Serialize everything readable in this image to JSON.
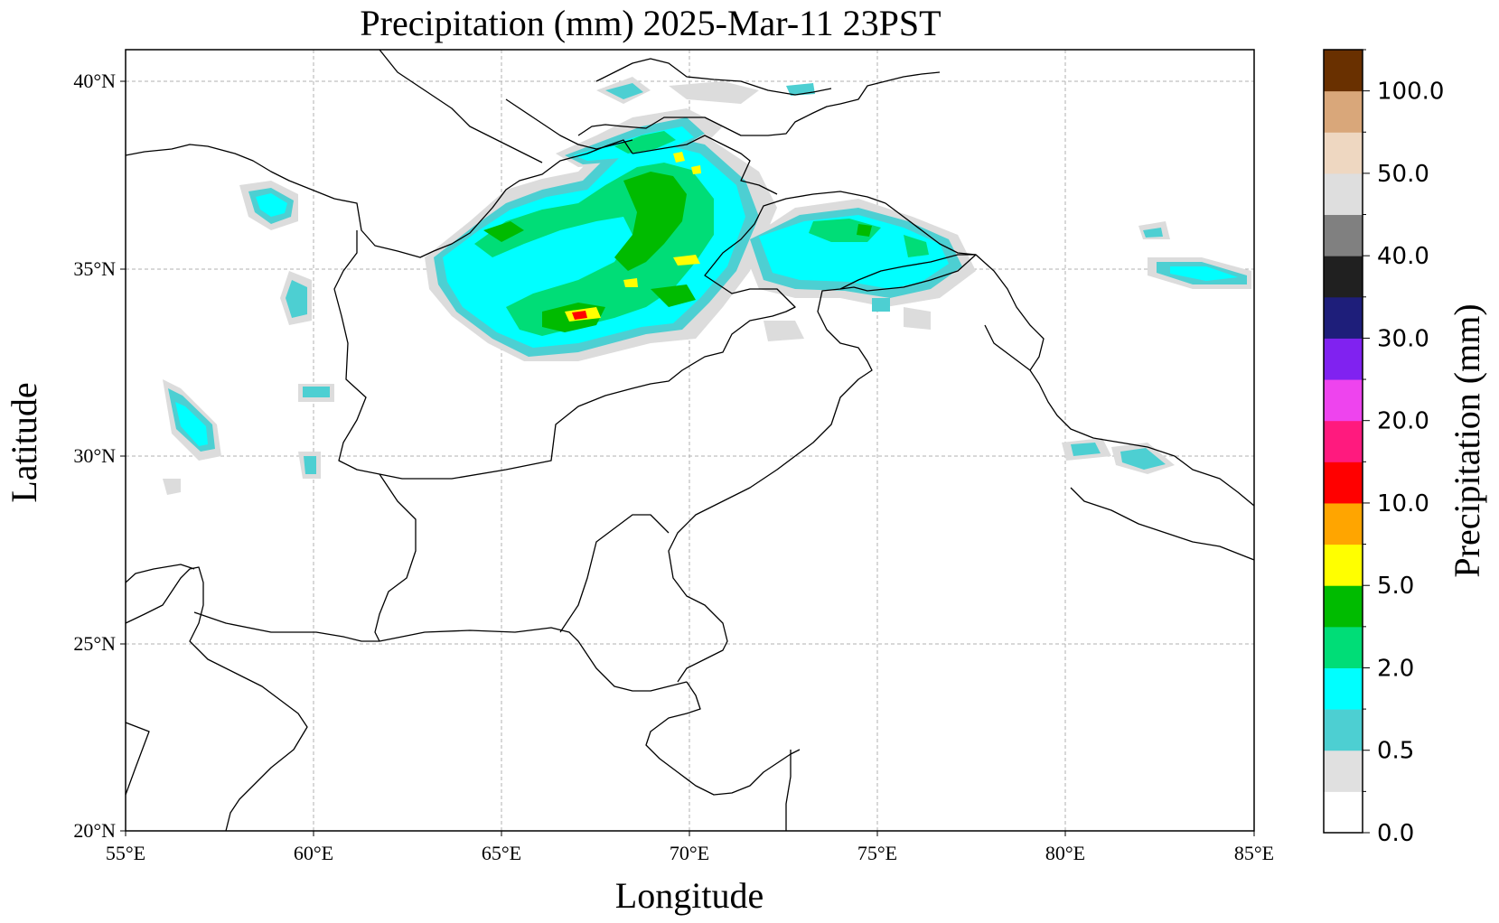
{
  "title": "Precipitation (mm)  2025-Mar-11 23PST",
  "map": {
    "xlabel": "Longitude",
    "ylabel": "Latitude",
    "lon_ticks": [
      "55°E",
      "60°E",
      "65°E",
      "70°E",
      "75°E",
      "80°E",
      "85°E"
    ],
    "lat_ticks": [
      "20°N",
      "25°N",
      "30°N",
      "35°N",
      "40°N"
    ],
    "lon_range": [
      55,
      85
    ],
    "lat_range": [
      20,
      41
    ],
    "grid": true,
    "border_color": "#000000"
  },
  "colorbar": {
    "label": "Precipitation (mm)",
    "colors": [
      "#ffffff",
      "#e0e0e0",
      "#4dcfd2",
      "#00ffff",
      "#00dd77",
      "#00bb00",
      "#ffff00",
      "#ffa500",
      "#ff0000",
      "#ff1a7e",
      "#ee44ee",
      "#8022f0",
      "#1e1e7a",
      "#202020",
      "#808080",
      "#dedede",
      "#eed7c1",
      "#d9a77a",
      "#693000"
    ],
    "tick_labels": [
      "0.0",
      "0.5",
      "2.0",
      "5.0",
      "10.0",
      "20.0",
      "30.0",
      "40.0",
      "50.0",
      "100.0"
    ]
  },
  "colors": {
    "light_gray": "#dcdcdc",
    "teal": "#4dcfd2",
    "cyan": "#00ffff",
    "light_green": "#00dd77",
    "green": "#00bb00",
    "yellow": "#ffff00",
    "red": "#ff0000"
  }
}
